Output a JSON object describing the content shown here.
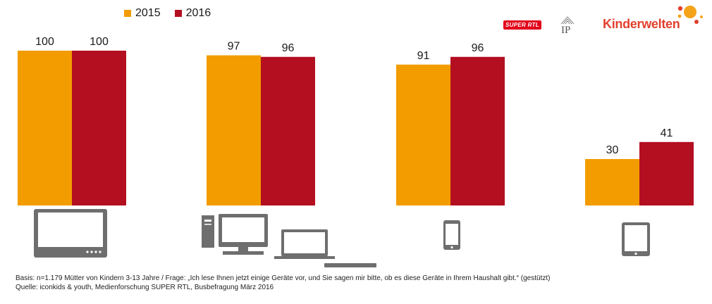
{
  "chart_data": {
    "type": "bar",
    "categories": [
      "",
      "",
      "",
      ""
    ],
    "category_icons": [
      "tv-icon",
      "computer-laptop-icon",
      "smartphone-icon",
      "tablet-icon"
    ],
    "series": [
      {
        "name": "2015",
        "values": [
          100,
          97,
          91,
          30
        ],
        "color": "#f39c00"
      },
      {
        "name": "2016",
        "values": [
          100,
          96,
          96,
          41
        ],
        "color": "#b30f21"
      }
    ],
    "ylim": [
      0,
      100
    ],
    "grid": false,
    "legend": "top-left",
    "data_labels": true
  },
  "logos": {
    "superrtl": "SUPER RTL",
    "ip": "IP",
    "kinderwelten": "Kinderwelten"
  },
  "source": {
    "basis": "Basis: n=1.179 Mütter von Kindern 3-13 Jahre / Frage: „Ich lese Ihnen jetzt einige Geräte vor, und Sie sagen mir bitte, ob es diese Geräte in Ihrem Haushalt gibt.“ (gestützt)",
    "quelle": "Quelle: iconkids & youth, Medienforschung SUPER RTL, Busbefragung März 2016"
  }
}
